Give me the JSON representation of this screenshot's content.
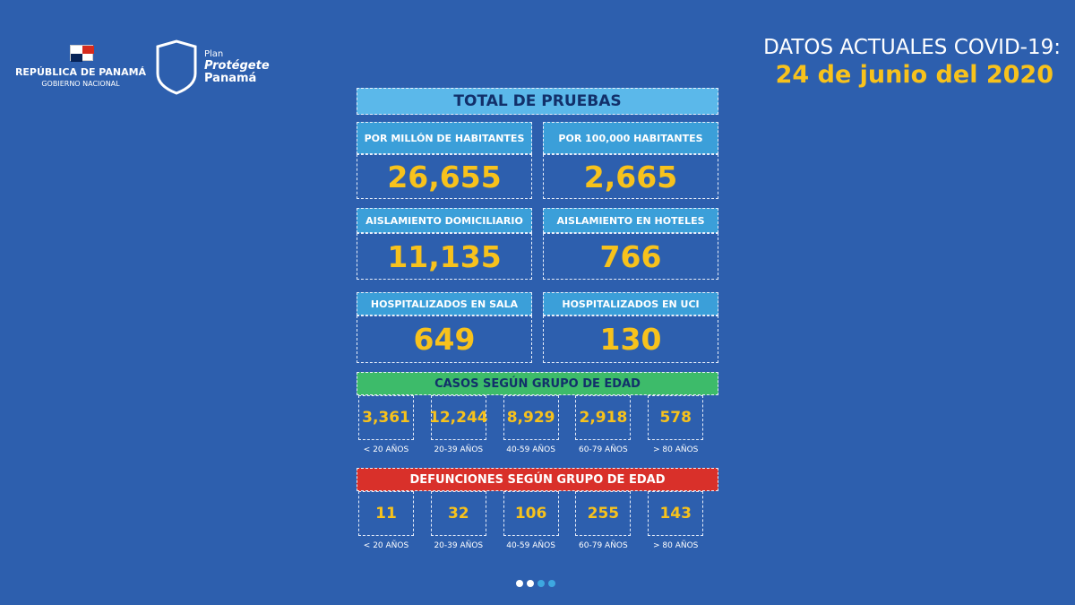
{
  "header": {
    "republic": "REPÚBLICA DE PANAMÁ",
    "government": "GOBIERNO NACIONAL",
    "plan": "Plan",
    "plan_name_1": "Protégete",
    "plan_name_2": "Panamá",
    "title": "DATOS ACTUALES COVID-19:",
    "date": "24 de junio del 2020"
  },
  "panel": {
    "title": "TOTAL DE PRUEBAS",
    "cards": [
      {
        "label": "POR MILLÓN DE HABITANTES",
        "value": "26,655"
      },
      {
        "label": "POR 100,000 HABITANTES",
        "value": "2,665"
      },
      {
        "label": "AISLAMIENTO DOMICILIARIO",
        "value": "11,135"
      },
      {
        "label": "AISLAMIENTO EN HOTELES",
        "value": "766"
      },
      {
        "label": "HOSPITALIZADOS EN SALA",
        "value": "649"
      },
      {
        "label": "HOSPITALIZADOS EN UCI",
        "value": "130"
      }
    ],
    "cases": {
      "title": "CASOS SEGÚN GRUPO DE EDAD",
      "values": [
        "3,361",
        "12,244",
        "8,929",
        "2,918",
        "578"
      ],
      "groups": [
        "< 20 AÑOS",
        "20-39 AÑOS",
        "40-59 AÑOS",
        "60-79 AÑOS",
        "> 80 AÑOS"
      ]
    },
    "deaths": {
      "title": "DEFUNCIONES SEGÚN GRUPO DE EDAD",
      "values": [
        "11",
        "32",
        "106",
        "255",
        "143"
      ],
      "groups": [
        "< 20 AÑOS",
        "20-39 AÑOS",
        "40-59 AÑOS",
        "60-79 AÑOS",
        "> 80 AÑOS"
      ]
    }
  }
}
